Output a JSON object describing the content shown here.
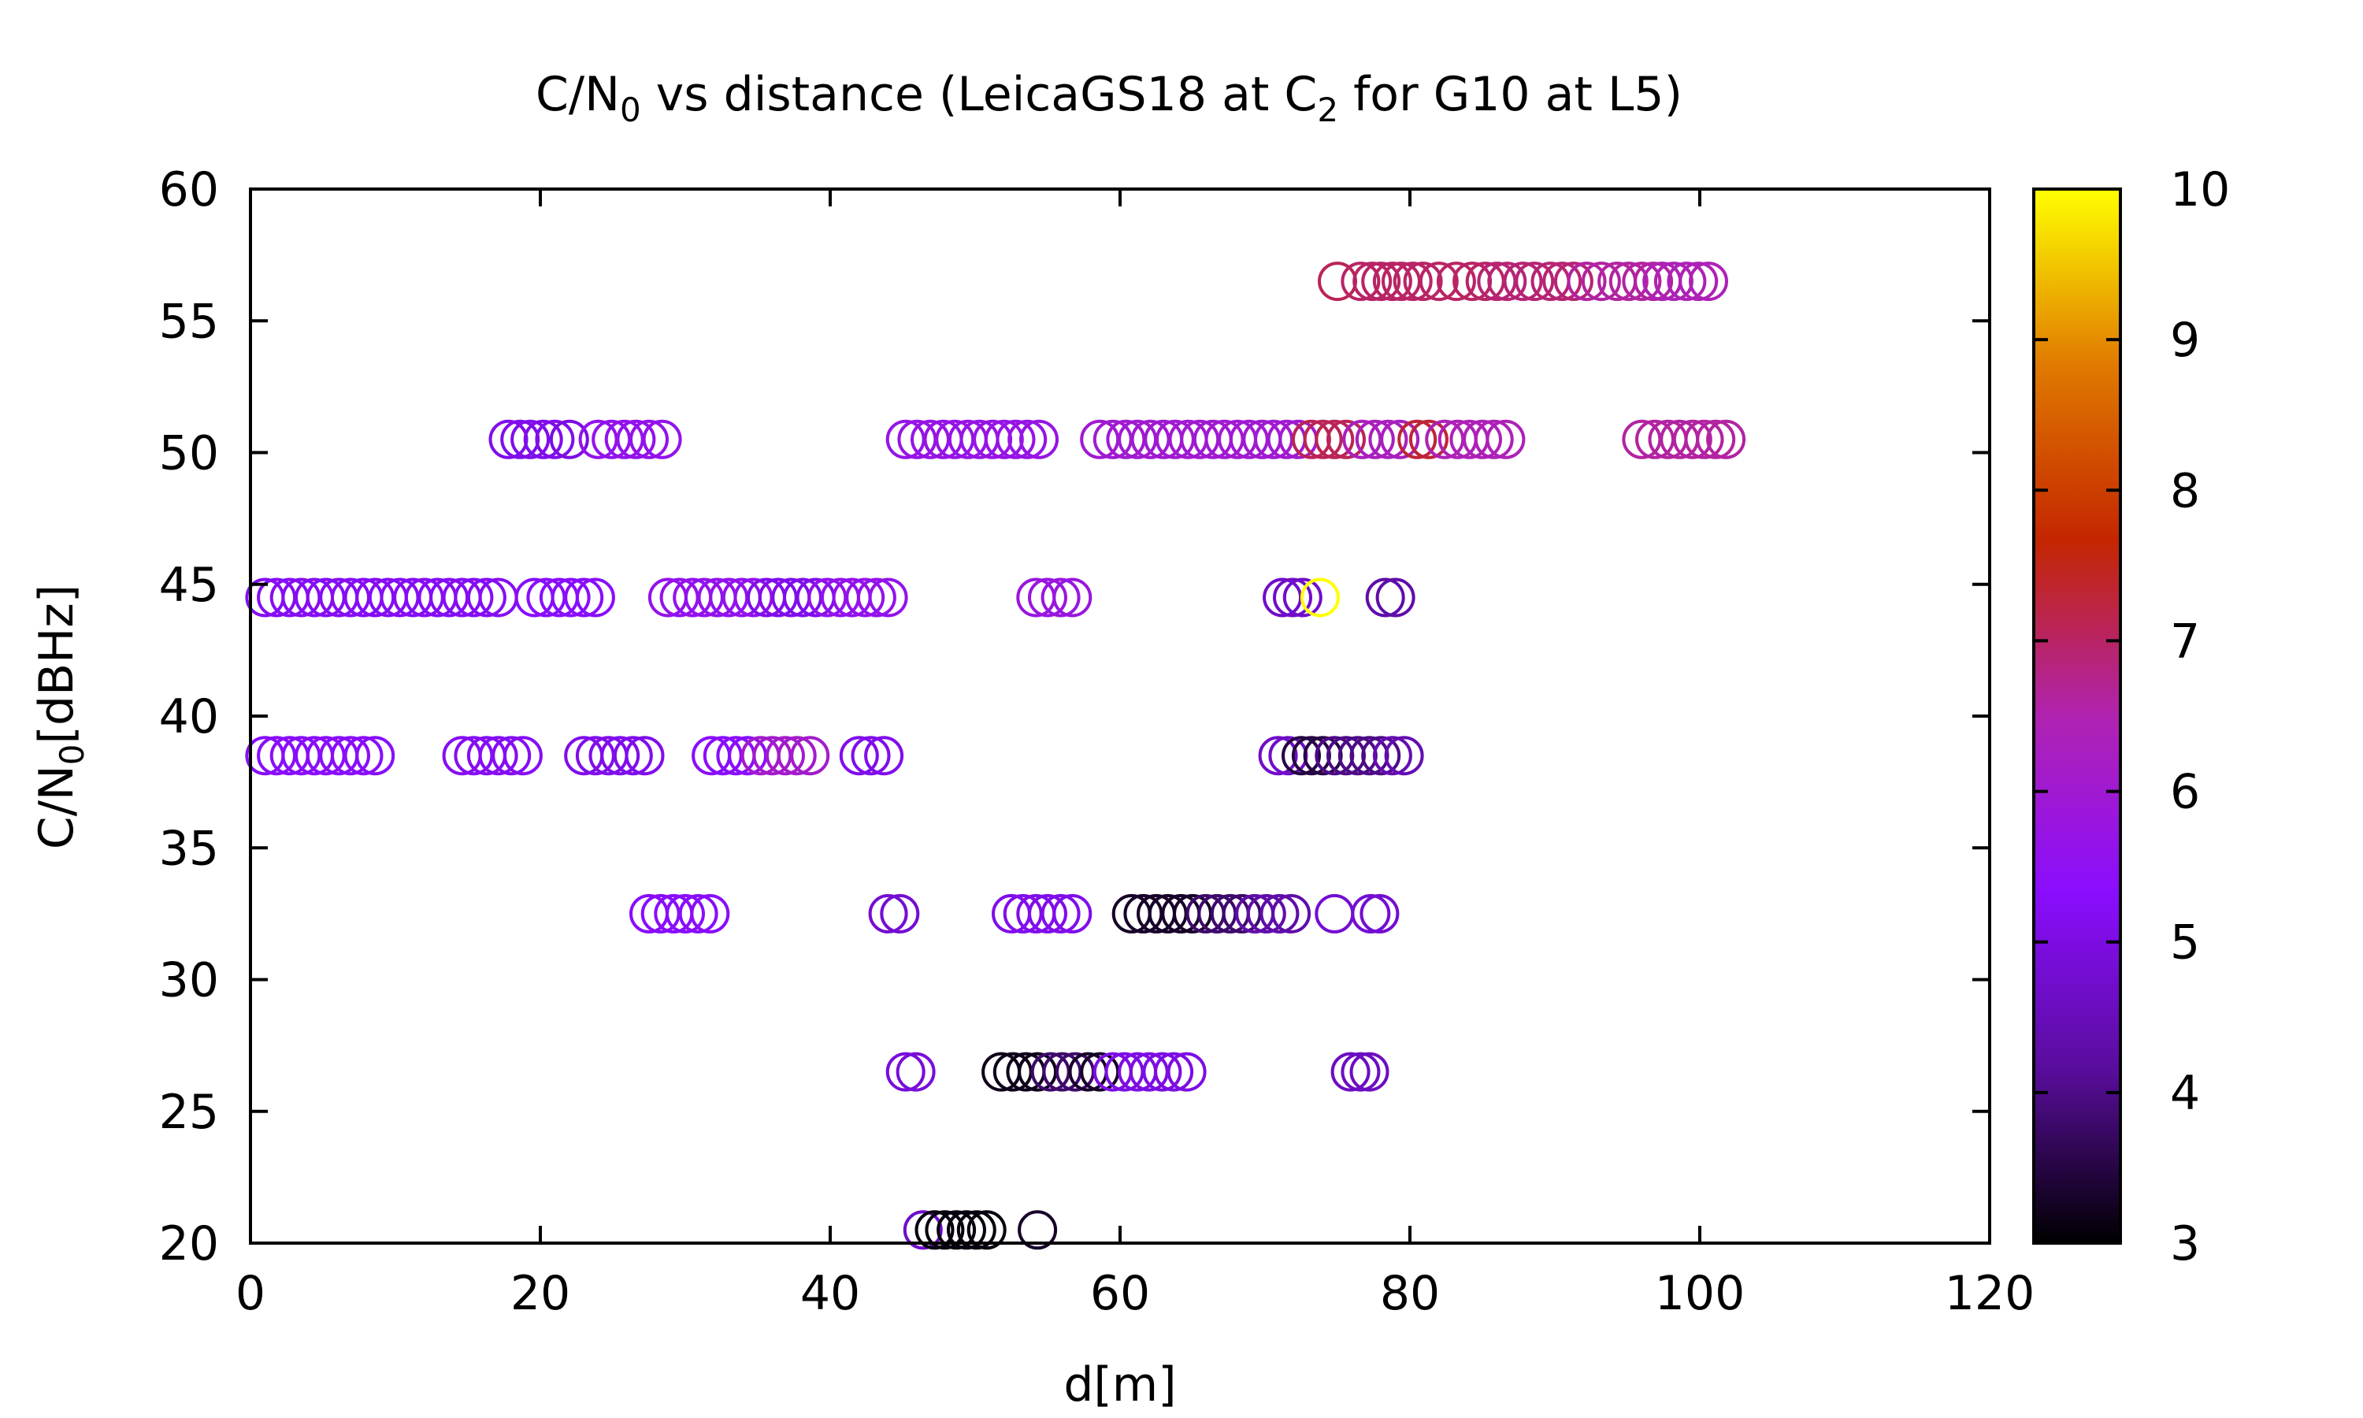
{
  "chart_data": {
    "type": "scatter",
    "title": "C/N₀ vs distance (LeicaGS18 at C₂ for G10 at L5)",
    "title_parts": {
      "pre": "C/N",
      "sub1": "0",
      "mid": " vs distance (LeicaGS18 at C",
      "sub2": "2",
      "post": " for G10 at L5)"
    },
    "xlabel": "d[m]",
    "ylabel_parts": {
      "pre": "C/N",
      "sub": "0",
      "post": "[dBHz]"
    },
    "xlim": [
      0,
      120
    ],
    "ylim": [
      20,
      60
    ],
    "xticks": [
      "0",
      "20",
      "40",
      "60",
      "80",
      "100",
      "120"
    ],
    "yticks": [
      "20",
      "25",
      "30",
      "35",
      "40",
      "45",
      "50",
      "55",
      "60"
    ],
    "colorbar": {
      "range": [
        3,
        10
      ],
      "ticks": [
        "3",
        "4",
        "5",
        "6",
        "7",
        "8",
        "9",
        "10"
      ],
      "palette": [
        "#000000",
        "#5a0d9e",
        "#8a0dfe",
        "#b023b0",
        "#c42600",
        "#e07a00",
        "#ffff00"
      ]
    },
    "marker": "open-circle",
    "points": [
      {
        "y": 56.5,
        "c": 7.1,
        "x": [
          75.0
        ]
      },
      {
        "y": 56.5,
        "c": 7.0,
        "x": [
          76.6,
          77.4,
          78.0,
          78.8,
          79.4,
          80.2,
          80.9,
          82.0,
          83.2,
          84.3,
          85.2
        ]
      },
      {
        "y": 56.5,
        "c": 6.9,
        "x": [
          86.0,
          86.7,
          87.8,
          88.6,
          89.7,
          90.5,
          91.3
        ]
      },
      {
        "y": 56.5,
        "c": 6.6,
        "x": [
          92.2,
          93.2,
          94.3,
          95.1,
          96.0,
          96.8
        ]
      },
      {
        "y": 56.5,
        "c": 6.4,
        "x": [
          97.4,
          98.2,
          99.1,
          99.9,
          100.6
        ]
      },
      {
        "y": 50.5,
        "c": 5.1,
        "x": [
          17.8,
          18.6,
          19.3,
          20.2,
          21.0
        ]
      },
      {
        "y": 50.5,
        "c": 5.0,
        "x": [
          22.0
        ]
      },
      {
        "y": 50.5,
        "c": 5.6,
        "x": [
          24.0,
          24.9,
          25.8,
          26.6,
          27.5,
          28.4
        ]
      },
      {
        "y": 50.5,
        "c": 5.7,
        "x": [
          45.2,
          46.0,
          46.9,
          47.8,
          48.6,
          49.5,
          50.3,
          51.2,
          52.0,
          52.8,
          53.6,
          54.4
        ]
      },
      {
        "y": 50.5,
        "c": 6.0,
        "x": [
          58.6,
          59.5,
          60.4,
          61.2,
          62.1,
          63.0,
          63.8,
          64.7,
          65.5,
          66.4,
          67.2,
          68.1,
          68.9,
          69.8,
          70.6,
          71.5,
          72.3
        ]
      },
      {
        "y": 50.5,
        "c": 7.1,
        "x": [
          73.2,
          74.0,
          74.8,
          75.6
        ]
      },
      {
        "y": 50.5,
        "c": 6.3,
        "x": [
          76.7,
          77.6,
          78.5,
          79.3
        ]
      },
      {
        "y": 50.5,
        "c": 7.3,
        "x": [
          80.5,
          81.3
        ]
      },
      {
        "y": 50.5,
        "c": 6.4,
        "x": [
          82.4,
          83.3,
          84.1,
          85.0,
          85.8,
          86.6
        ]
      },
      {
        "y": 50.5,
        "c": 6.6,
        "x": [
          96.0,
          96.9,
          97.8,
          98.6,
          99.5,
          100.3,
          101.1,
          101.8
        ]
      },
      {
        "y": 44.5,
        "c": 5.2,
        "x": [
          1.0,
          1.8,
          2.7,
          3.5,
          4.4,
          5.2,
          6.1,
          6.9,
          7.8,
          8.6,
          9.5,
          10.3,
          11.2,
          12.0,
          12.9,
          13.7,
          14.6,
          15.4,
          16.3,
          17.1
        ]
      },
      {
        "y": 44.5,
        "c": 5.3,
        "x": [
          19.6,
          20.4,
          21.3,
          22.1,
          23.0,
          23.8
        ]
      },
      {
        "y": 44.5,
        "c": 5.6,
        "x": [
          28.8,
          29.6,
          30.5,
          31.3,
          32.2,
          33.0,
          33.9,
          34.7
        ]
      },
      {
        "y": 44.5,
        "c": 5.1,
        "x": [
          35.6,
          36.4,
          37.3,
          38.1,
          39.0
        ]
      },
      {
        "y": 44.5,
        "c": 5.6,
        "x": [
          39.8,
          40.7,
          41.5,
          42.4,
          43.2,
          44.0
        ]
      },
      {
        "y": 44.5,
        "c": 5.8,
        "x": [
          54.2,
          55.0,
          55.9,
          56.7
        ]
      },
      {
        "y": 44.5,
        "c": 4.7,
        "x": [
          71.2,
          71.9,
          72.6
        ]
      },
      {
        "y": 44.5,
        "c": 10.0,
        "x": [
          73.8
        ]
      },
      {
        "y": 44.5,
        "c": 4.3,
        "x": [
          78.3,
          79.0
        ]
      },
      {
        "y": 38.5,
        "c": 5.3,
        "x": [
          1.0,
          1.8,
          2.7,
          3.5,
          4.4,
          5.2,
          6.1,
          6.9,
          7.8,
          8.6
        ]
      },
      {
        "y": 38.5,
        "c": 5.2,
        "x": [
          14.6,
          15.4,
          16.3,
          17.1,
          18.0,
          18.8
        ]
      },
      {
        "y": 38.5,
        "c": 5.1,
        "x": [
          23.0,
          23.8,
          24.7,
          25.5,
          26.4,
          27.2
        ]
      },
      {
        "y": 38.5,
        "c": 5.3,
        "x": [
          31.8,
          32.6,
          33.5,
          34.3
        ]
      },
      {
        "y": 38.5,
        "c": 6.1,
        "x": [
          35.2,
          36.0,
          36.9,
          37.7,
          38.6
        ]
      },
      {
        "y": 38.5,
        "c": 5.1,
        "x": [
          42.0,
          42.8,
          43.7
        ]
      },
      {
        "y": 38.5,
        "c": 4.7,
        "x": [
          70.9,
          71.6
        ]
      },
      {
        "y": 38.5,
        "c": 3.5,
        "x": [
          72.5,
          73.2,
          74.0
        ]
      },
      {
        "y": 38.5,
        "c": 4.0,
        "x": [
          74.8,
          75.6,
          76.4,
          77.2,
          78.0
        ]
      },
      {
        "y": 38.5,
        "c": 4.4,
        "x": [
          78.8,
          79.6
        ]
      },
      {
        "y": 32.5,
        "c": 5.3,
        "x": [
          27.5,
          28.3,
          29.2,
          30.0,
          30.9,
          31.7
        ]
      },
      {
        "y": 32.5,
        "c": 4.8,
        "x": [
          44.0,
          44.8
        ]
      },
      {
        "y": 32.5,
        "c": 5.1,
        "x": [
          52.5,
          53.3,
          54.2,
          55.0,
          55.9,
          56.7
        ]
      },
      {
        "y": 32.5,
        "c": 3.3,
        "x": [
          60.8,
          61.6,
          62.5,
          63.3,
          64.2,
          65.0
        ]
      },
      {
        "y": 32.5,
        "c": 3.8,
        "x": [
          65.9,
          66.7,
          67.6,
          68.4
        ]
      },
      {
        "y": 32.5,
        "c": 4.3,
        "x": [
          69.3,
          70.1,
          71.0,
          71.8
        ]
      },
      {
        "y": 32.5,
        "c": 4.8,
        "x": [
          74.8,
          77.3,
          77.9
        ]
      },
      {
        "y": 26.5,
        "c": 4.9,
        "x": [
          45.2,
          45.9
        ]
      },
      {
        "y": 26.5,
        "c": 3.2,
        "x": [
          51.8,
          52.6,
          53.5,
          54.3
        ]
      },
      {
        "y": 26.5,
        "c": 3.8,
        "x": [
          55.2,
          56.0,
          56.9
        ]
      },
      {
        "y": 26.5,
        "c": 3.3,
        "x": [
          57.8,
          58.6
        ]
      },
      {
        "y": 26.5,
        "c": 5.0,
        "x": [
          59.5,
          60.3,
          61.2,
          62.0,
          62.9,
          63.7,
          64.6
        ]
      },
      {
        "y": 26.5,
        "c": 4.6,
        "x": [
          75.9,
          76.6,
          77.2
        ]
      },
      {
        "y": 20.5,
        "c": 4.7,
        "x": [
          46.4
        ]
      },
      {
        "y": 20.5,
        "c": 3.1,
        "x": [
          47.2,
          47.9,
          48.7,
          49.4,
          50.1,
          50.8
        ]
      },
      {
        "y": 20.5,
        "c": 3.3,
        "x": [
          54.3
        ]
      }
    ]
  }
}
